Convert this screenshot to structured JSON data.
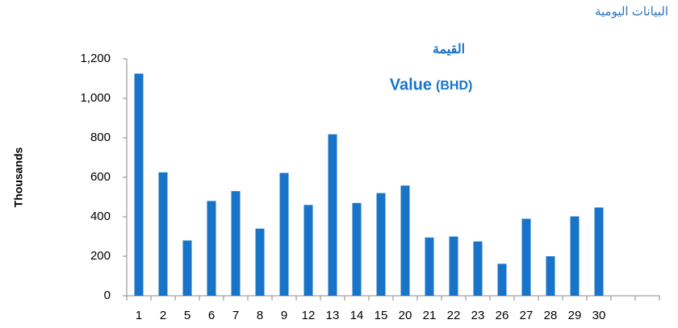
{
  "header": "البيانات اليومية",
  "chart_data": {
    "type": "bar",
    "title": "القيمة",
    "subtitle": "Value",
    "subtitle_unit": "(BHD)",
    "y_label": "Thousands",
    "categories": [
      "1",
      "2",
      "5",
      "6",
      "7",
      "8",
      "9",
      "12",
      "13",
      "14",
      "15",
      "20",
      "21",
      "22",
      "23",
      "26",
      "27",
      "28",
      "29",
      "30",
      null,
      null
    ],
    "values": [
      1125,
      625,
      280,
      480,
      530,
      340,
      622,
      460,
      818,
      470,
      520,
      558,
      295,
      300,
      275,
      162,
      390,
      200,
      402,
      447,
      null,
      null
    ],
    "color": "#1874c8",
    "ylim": [
      0,
      1200
    ],
    "yticks": [
      0,
      200,
      400,
      600,
      800,
      {
        "value": 1000,
        "label": "1,000"
      },
      {
        "value": 1200,
        "label": "1,200"
      }
    ]
  }
}
